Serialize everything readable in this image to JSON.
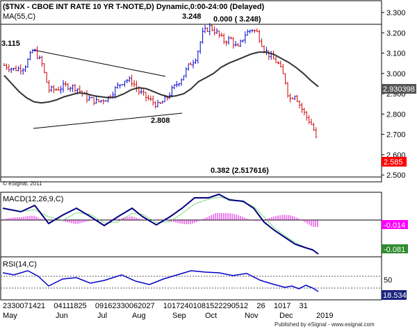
{
  "chart_data": [
    {
      "type": "candlestick",
      "title": "($TNX - CBOE INT RATE 10 YR T-NOTE,D) Dynamic,0:00-24:00 (Delayed)",
      "indicator_label": "MA(55,C)",
      "copyright": "© eSignal, 2011",
      "y_ticks": [
        "3.300",
        "3.200",
        "3.100",
        "3.000",
        "2.900",
        "2.800",
        "2.700",
        "2.600",
        "2.500"
      ],
      "ylim": [
        2.48,
        3.3
      ],
      "last_price": "2.585",
      "ma_value": "2.930398",
      "annotations": {
        "left_value": "3.115",
        "peak_value": "3.248",
        "fib_top": "0.000 ( 3.248)",
        "trough_value": "2.808",
        "fib_382": "0.382 (2.517616)"
      },
      "colors": {
        "up": "#0000cc",
        "down": "#cc0000",
        "ma": "#333333",
        "trend": "#000000",
        "last_bg": "#ff0000",
        "ma_bg": "#555555"
      },
      "ma_values": [
        2.99,
        2.95,
        2.91,
        2.88,
        2.86,
        2.855,
        2.86,
        2.87,
        2.885,
        2.895,
        2.905,
        2.9,
        2.89,
        2.885,
        2.88,
        2.885,
        2.9,
        2.92,
        2.93,
        2.925,
        2.91,
        2.895,
        2.885,
        2.89,
        2.9,
        2.925,
        2.96,
        2.98,
        3.0,
        3.03,
        3.05,
        3.065,
        3.08,
        3.095,
        3.105,
        3.105,
        3.095,
        3.075,
        3.055,
        3.03,
        3.0,
        2.965,
        2.935
      ]
    },
    {
      "type": "line",
      "title": "MACD(12,26,9,C)",
      "values": [
        "-0.014",
        "-0.081"
      ],
      "colors": {
        "macd": "#000080",
        "signal": "#40c040",
        "hist": "#dd00dd"
      }
    },
    {
      "type": "line",
      "title": "RSI(14,C)",
      "y_ticks": [
        "50"
      ],
      "value": "18.534",
      "colors": {
        "rsi": "#0000cc",
        "value_bg": "#1a237e"
      }
    }
  ],
  "x_axis": {
    "day_labels": "2330071421    04111825    09162330062027    10172401081522290512    26    1017    31",
    "month_labels": [
      "May",
      "Jun",
      "Jul",
      "Aug",
      "Sep",
      "Oct",
      "Nov",
      "Dec",
      "2019"
    ],
    "published": "Published by eSignal - www.esignal.com"
  }
}
